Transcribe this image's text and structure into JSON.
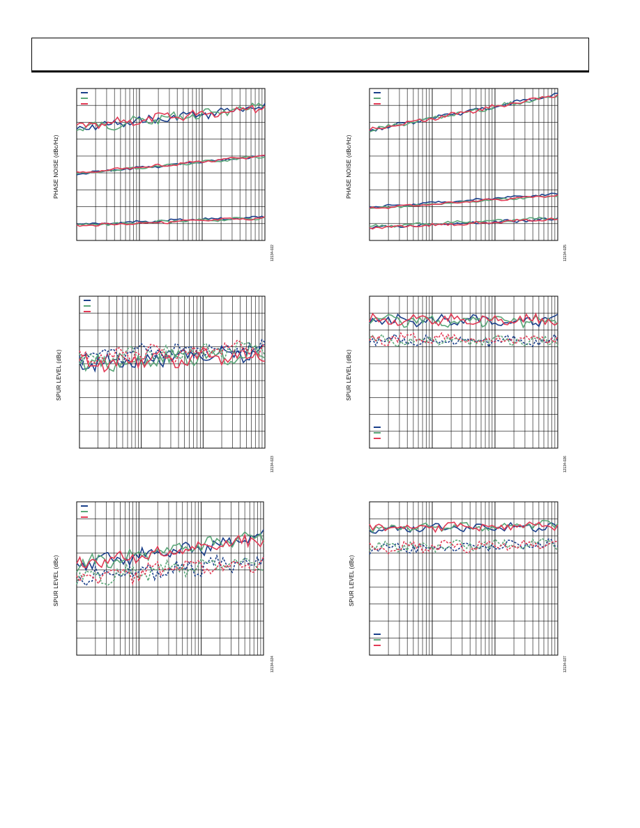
{
  "chart_data": [
    {
      "type": "line",
      "ylabel": "PHASE NOISE (dBc/Hz)",
      "figure_id": "12134-022",
      "grid": true,
      "legend": "top-left",
      "colors": [
        "#1a3f8a",
        "#5aa678",
        "#e23a55"
      ],
      "groups": [
        {
          "base": 0.37,
          "slope": 0.2,
          "noise": 0.035
        },
        {
          "base": 0.78,
          "slope": 0.16,
          "noise": 0.01
        },
        {
          "base": 1.26,
          "slope": 0.07,
          "noise": 0.01
        }
      ]
    },
    {
      "type": "line",
      "ylabel": "PHASE NOISE (dBc/Hz)",
      "figure_id": "12134-025",
      "grid": true,
      "legend": "top-left",
      "colors": [
        "#1a3f8a",
        "#5aa678",
        "#e23a55"
      ],
      "groups": [
        {
          "base": 0.38,
          "slope": 0.32,
          "noise": 0.015
        },
        {
          "base": 1.1,
          "slope": 0.12,
          "noise": 0.008
        },
        {
          "base": 1.28,
          "slope": 0.08,
          "noise": 0.012
        }
      ]
    },
    {
      "type": "line",
      "ylabel": "SPUR LEVEL (dBc)",
      "figure_id": "12134-023",
      "grid": true,
      "legend": "top",
      "colors": [
        "#1a3f8a",
        "#5aa678",
        "#e23a55"
      ],
      "groups": [
        {
          "base": 0.62,
          "slope": 0.1,
          "noise": 0.06,
          "dashed": false
        },
        {
          "base": 0.55,
          "slope": 0.08,
          "noise": 0.06,
          "dashed": true
        }
      ]
    },
    {
      "type": "line",
      "ylabel": "SPUR LEVEL (dBc)",
      "figure_id": "12134-026",
      "grid": true,
      "legend": "bottom",
      "colors": [
        "#1a3f8a",
        "#5aa678",
        "#e23a55"
      ],
      "groups": [
        {
          "base": 0.22,
          "slope": 0.0,
          "noise": 0.04,
          "dashed": false
        },
        {
          "base": 0.4,
          "slope": 0.0,
          "noise": 0.04,
          "dashed": true
        }
      ]
    },
    {
      "type": "line",
      "ylabel": "SPUR LEVEL (dBc)",
      "figure_id": "12134-024",
      "grid": true,
      "legend": "top",
      "colors": [
        "#1a3f8a",
        "#5aa678",
        "#e23a55"
      ],
      "groups": [
        {
          "base": 0.58,
          "slope": 0.25,
          "noise": 0.05,
          "dashed": false
        },
        {
          "base": 0.7,
          "slope": 0.15,
          "noise": 0.06,
          "dashed": true
        }
      ]
    },
    {
      "type": "line",
      "ylabel": "SPUR LEVEL (dBc)",
      "figure_id": "12134-027",
      "grid": true,
      "legend": "bottom",
      "colors": [
        "#1a3f8a",
        "#5aa678",
        "#e23a55"
      ],
      "groups": [
        {
          "base": 0.25,
          "slope": 0.03,
          "noise": 0.03,
          "dashed": false
        },
        {
          "base": 0.42,
          "slope": 0.03,
          "noise": 0.04,
          "dashed": true
        }
      ]
    }
  ]
}
